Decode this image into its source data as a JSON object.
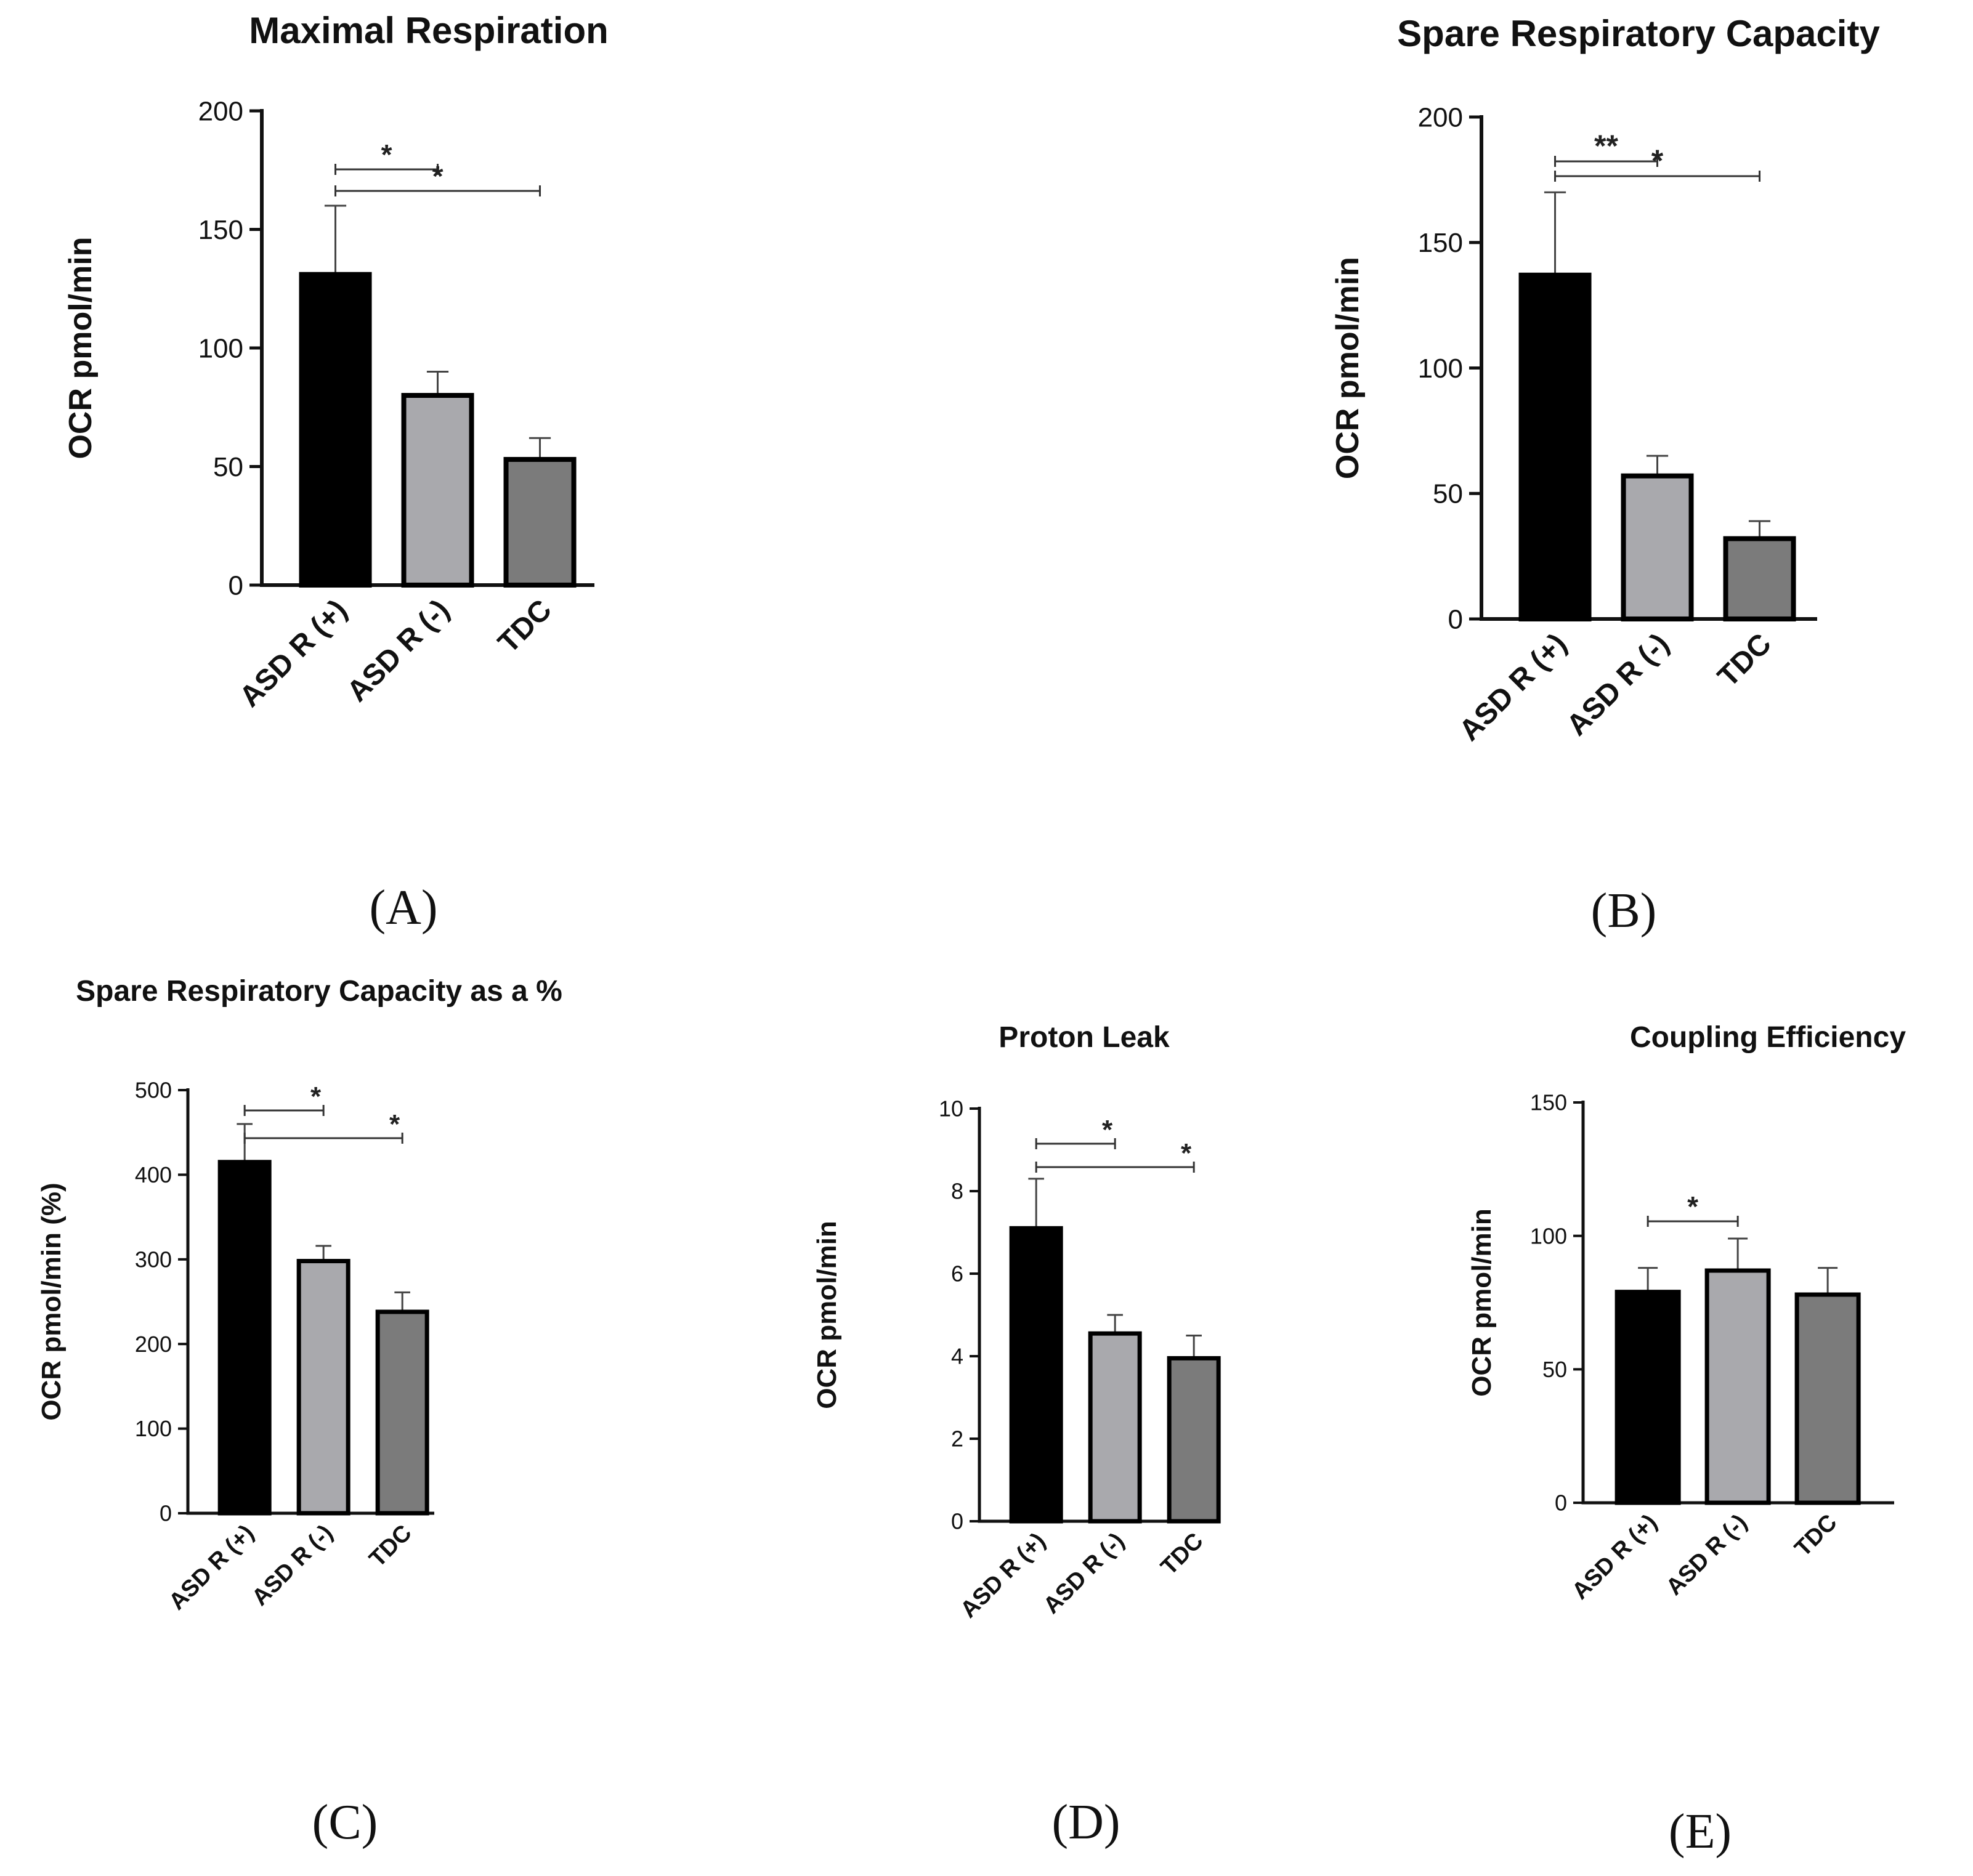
{
  "chart_data": [
    {
      "panel": "(A)",
      "type": "bar",
      "title": "Maximal Respiration",
      "ylabel": "OCR pmol/min",
      "categories": [
        "ASD R (+)",
        "ASD R (-)",
        "TDC"
      ],
      "values": [
        131,
        80,
        53
      ],
      "errors": [
        29,
        10,
        9
      ],
      "colors": [
        "#000000",
        "#a9a9ad",
        "#7b7b7b"
      ],
      "ylim": [
        0,
        200
      ],
      "yticks": [
        "0",
        "50",
        "100",
        "150",
        "200"
      ],
      "significance": [
        {
          "from": "ASD R (+)",
          "to": "ASD R (-)",
          "label": "*"
        },
        {
          "from": "ASD R (+)",
          "to": "TDC",
          "label": "*"
        }
      ]
    },
    {
      "panel": "(B)",
      "type": "bar",
      "title": "Spare Respiratory Capacity",
      "ylabel": "OCR pmol/min",
      "categories": [
        "ASD R (+)",
        "ASD R (-)",
        "TDC"
      ],
      "values": [
        137,
        57,
        32
      ],
      "errors": [
        33,
        8,
        7
      ],
      "colors": [
        "#000000",
        "#a9a9ad",
        "#7b7b7b"
      ],
      "ylim": [
        0,
        200
      ],
      "yticks": [
        "0",
        "50",
        "100",
        "150",
        "200"
      ],
      "significance": [
        {
          "from": "ASD R (+)",
          "to": "ASD R (-)",
          "label": "**"
        },
        {
          "from": "ASD R (+)",
          "to": "TDC",
          "label": "*"
        }
      ]
    },
    {
      "panel": "(C)",
      "type": "bar",
      "title": "Spare Respiratory Capacity as a %",
      "ylabel": "OCR pmol/min (%)",
      "categories": [
        "ASD R (+)",
        "ASD R (-)",
        "TDC"
      ],
      "values": [
        415,
        298,
        238
      ],
      "errors": [
        45,
        18,
        23
      ],
      "colors": [
        "#000000",
        "#a9a9ad",
        "#7b7b7b"
      ],
      "ylim": [
        0,
        500
      ],
      "yticks": [
        "0",
        "100",
        "200",
        "300",
        "400",
        "500"
      ],
      "significance": [
        {
          "from": "ASD R (+)",
          "to": "ASD R (-)",
          "label": "*"
        },
        {
          "from": "ASD R (+)",
          "to": "TDC",
          "label": "*"
        }
      ]
    },
    {
      "panel": "(D)",
      "type": "bar",
      "title": "Proton Leak",
      "ylabel": "OCR pmol/min",
      "categories": [
        "ASD R (+)",
        "ASD R (-)",
        "TDC"
      ],
      "values": [
        7.1,
        4.55,
        3.95
      ],
      "errors": [
        1.2,
        0.45,
        0.55
      ],
      "colors": [
        "#000000",
        "#a9a9ad",
        "#7b7b7b"
      ],
      "ylim": [
        0,
        10
      ],
      "yticks": [
        "0",
        "2",
        "4",
        "6",
        "8",
        "10"
      ],
      "significance": [
        {
          "from": "ASD R (+)",
          "to": "ASD R (-)",
          "label": "*"
        },
        {
          "from": "ASD R (+)",
          "to": "TDC",
          "label": "*"
        }
      ]
    },
    {
      "panel": "(E)",
      "type": "bar",
      "title": "Coupling Efficiency",
      "ylabel": "OCR pmol/min",
      "categories": [
        "ASD R (+)",
        "ASD R (-)",
        "TDC"
      ],
      "values": [
        79,
        87,
        78
      ],
      "errors": [
        9,
        12,
        10
      ],
      "colors": [
        "#000000",
        "#a9a9ad",
        "#7b7b7b"
      ],
      "ylim": [
        0,
        150
      ],
      "yticks": [
        "0",
        "50",
        "100",
        "150"
      ],
      "significance": [
        {
          "from": "ASD R (+)",
          "to": "ASD R (-)",
          "label": "*"
        }
      ]
    }
  ]
}
